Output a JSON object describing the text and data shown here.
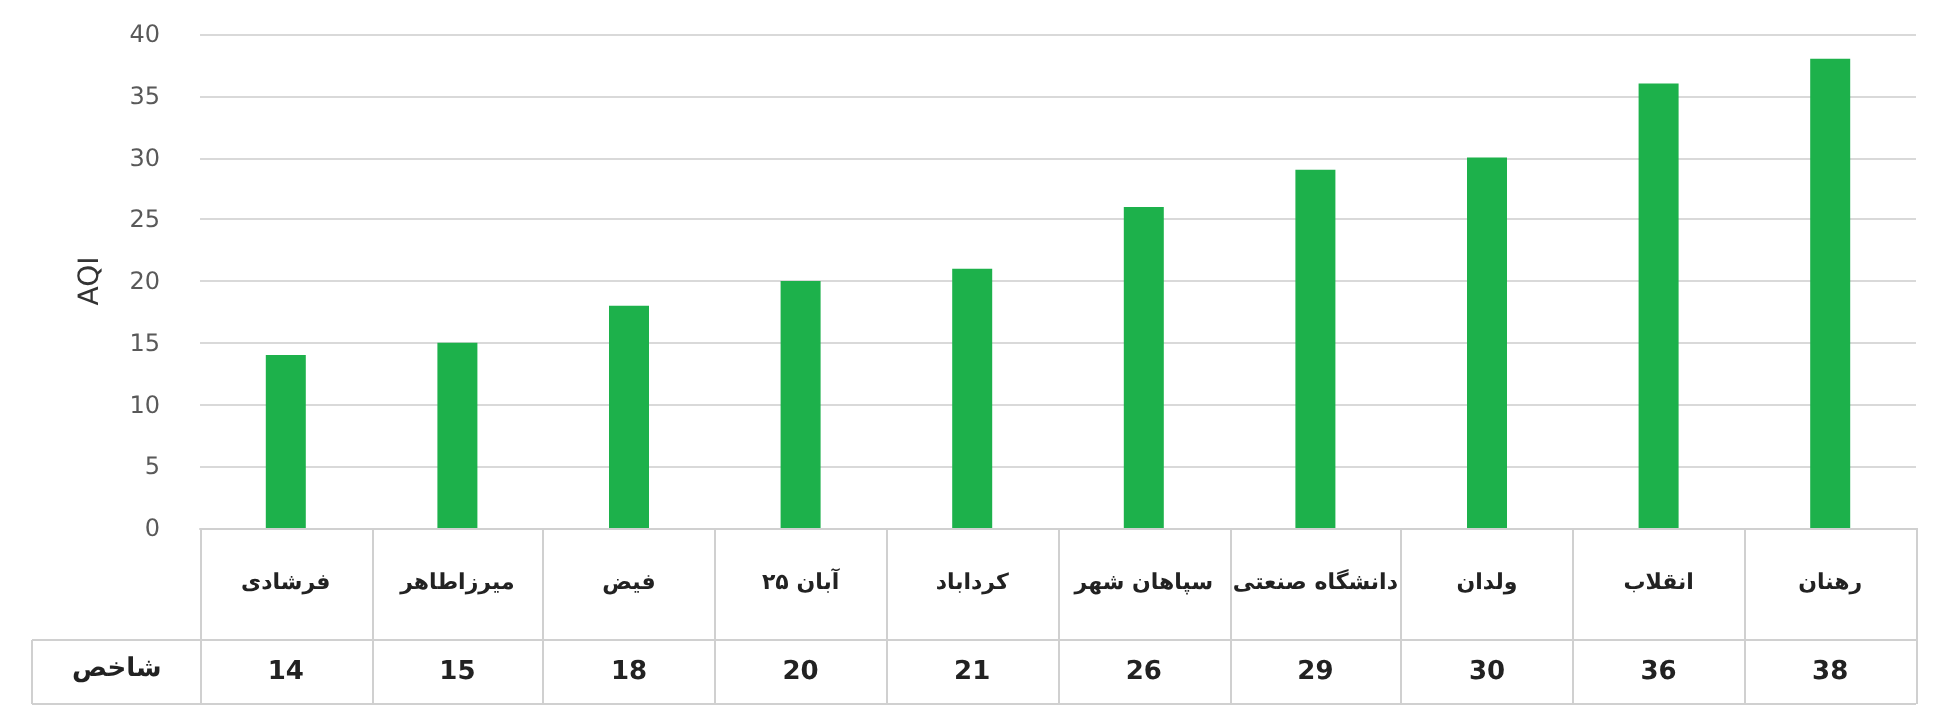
{
  "chart_data": {
    "type": "bar",
    "ylabel": "AQI",
    "categories": [
      "فرشادی",
      "میرزاطاهر",
      "فیض",
      "۲۵ آبان",
      "کرداباد",
      "سپاهان شهر",
      "دانشگاه صنعتی",
      "ولدان",
      "انقلاب",
      "رهنان"
    ],
    "series": [
      {
        "name": "شاخص",
        "color": "#1db14b",
        "values": [
          14,
          15,
          18,
          20,
          21,
          26,
          29,
          30,
          36,
          38
        ]
      }
    ],
    "ylim": [
      0,
      40
    ],
    "yticks": [
      0,
      5,
      10,
      15,
      20,
      25,
      30,
      35,
      40
    ],
    "grid": "y",
    "legend": false,
    "data_labels": true
  }
}
